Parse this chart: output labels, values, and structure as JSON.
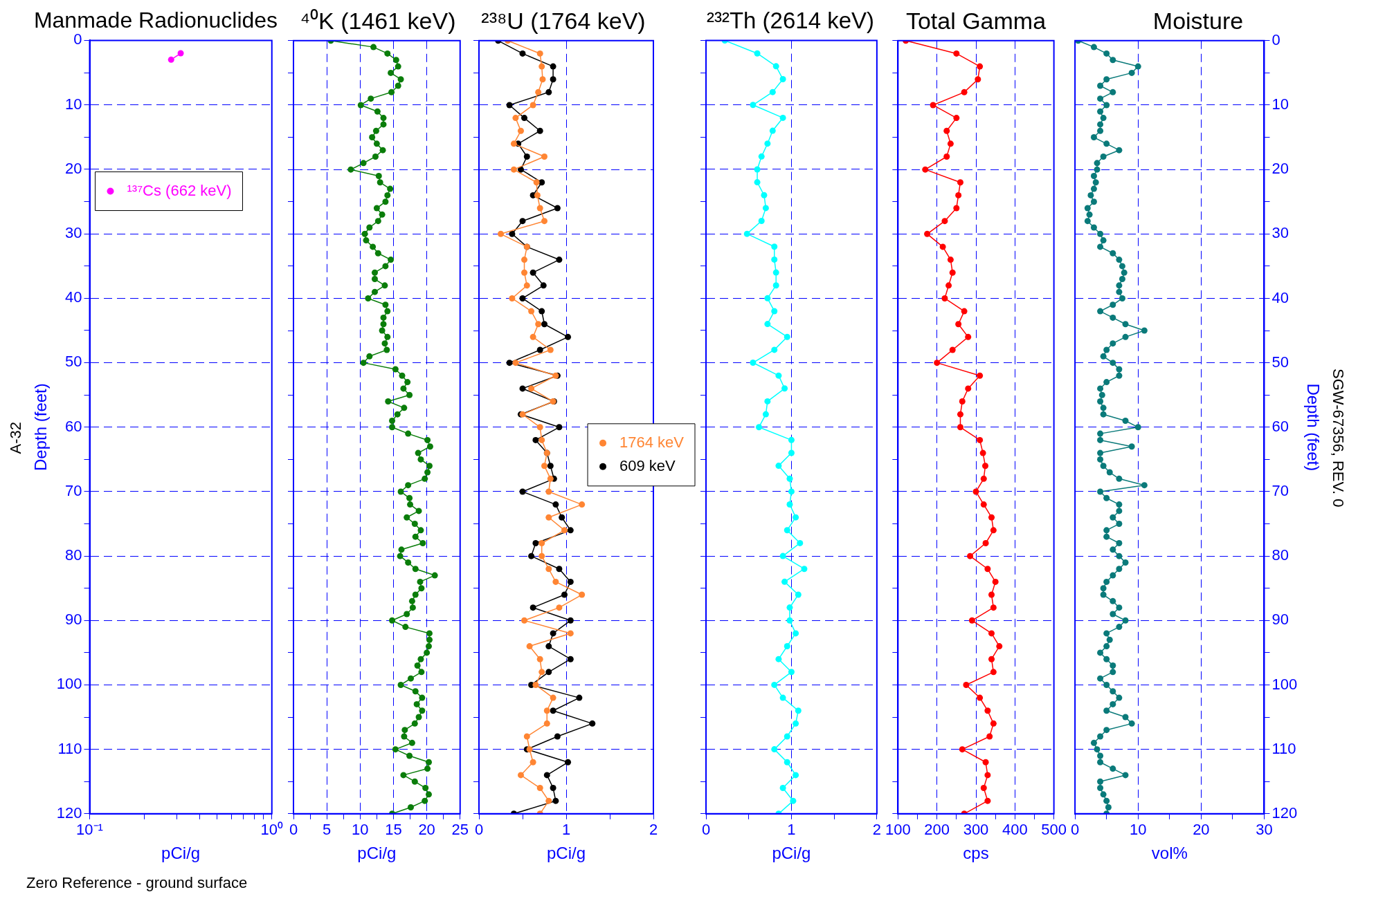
{
  "chart_data": [
    {
      "type": "line",
      "title": "Manmade Radionuclides",
      "xlabel": "pCi/g",
      "ylabel": "Depth (feet)",
      "log": "x",
      "grid": "y",
      "legend": "top left",
      "marker": "circle",
      "xlim": [
        0.1,
        1
      ],
      "xticks": [
        {
          "value": 0.1,
          "label": "10⁻¹"
        },
        {
          "value": 0.2,
          "label": null
        },
        {
          "value": 0.3,
          "label": null
        },
        {
          "value": 0.4,
          "label": null
        },
        {
          "value": 0.5,
          "label": null
        },
        {
          "value": 0.6,
          "label": null
        },
        {
          "value": 0.7,
          "label": null
        },
        {
          "value": 0.8,
          "label": null
        },
        {
          "value": 0.9,
          "label": null
        },
        {
          "value": 1,
          "label": "10⁰"
        }
      ],
      "ylim": [
        120,
        0
      ],
      "yticks": [
        0,
        {
          "value": 5,
          "label": null
        },
        10,
        {
          "value": 15,
          "label": null
        },
        20,
        {
          "value": 25,
          "label": null
        },
        30,
        {
          "value": 35,
          "label": null
        },
        40,
        {
          "value": 45,
          "label": null
        },
        50,
        {
          "value": 55,
          "label": null
        },
        60,
        {
          "value": 65,
          "label": null
        },
        70,
        {
          "value": 75,
          "label": null
        },
        80,
        {
          "value": 85,
          "label": null
        },
        90,
        {
          "value": 95,
          "label": null
        },
        100,
        {
          "value": 105,
          "label": null
        },
        110,
        {
          "value": 115,
          "label": null
        },
        120
      ],
      "series": [
        {
          "name": "¹³⁷Cs (662 keV)",
          "color": "#ff00ff",
          "x": [
            0.316,
            0.28
          ],
          "values": [
            2,
            3
          ]
        }
      ],
      "annotations": [
        "A-32",
        "Zero Reference - ground surface"
      ]
    },
    {
      "type": "line",
      "title": "⁴⁰K (1461 keV)",
      "xlabel": "pCi/g",
      "grid": true,
      "marker": "circle",
      "tick_labels": "x",
      "xlim": [
        0,
        25
      ],
      "xticks": [
        0,
        {
          "value": 2.5,
          "label": null
        },
        5,
        {
          "value": 7.5,
          "label": null
        },
        10,
        {
          "value": 12.5,
          "label": null
        },
        15,
        {
          "value": 17.5,
          "label": null
        },
        20,
        {
          "value": 22.5,
          "label": null
        },
        25
      ],
      "ylim": [
        120,
        0
      ],
      "yticks": [
        0,
        {
          "value": 5,
          "label": null
        },
        10,
        {
          "value": 15,
          "label": null
        },
        20,
        {
          "value": 25,
          "label": null
        },
        30,
        {
          "value": 35,
          "label": null
        },
        40,
        {
          "value": 45,
          "label": null
        },
        50,
        {
          "value": 55,
          "label": null
        },
        60,
        {
          "value": 65,
          "label": null
        },
        70,
        {
          "value": 75,
          "label": null
        },
        80,
        {
          "value": 85,
          "label": null
        },
        90,
        {
          "value": 95,
          "label": null
        },
        100,
        {
          "value": 105,
          "label": null
        },
        110,
        {
          "value": 115,
          "label": null
        },
        120
      ],
      "series": [
        {
          "color": "#0a7d0a",
          "x": [
            5.6,
            12.0,
            14.1,
            15.4,
            15.7,
            14.6,
            16.1,
            15.7,
            14.7,
            11.6,
            10.1,
            12.6,
            13.5,
            13.5,
            12.4,
            11.8,
            12.5,
            13.4,
            12.3,
            10.5,
            8.6,
            12.8,
            13.0,
            14.5,
            14.1,
            13.8,
            12.5,
            13.3,
            12.7,
            11.4,
            10.7,
            10.9,
            11.9,
            12.7,
            14.6,
            13.8,
            12.2,
            12.2,
            13.7,
            12.2,
            11.2,
            13.8,
            14.1,
            13.5,
            13.5,
            13.3,
            14.1,
            13.7,
            14.0,
            11.4,
            10.5,
            15.3,
            16.3,
            17.1,
            16.5,
            17.4,
            14.2,
            16.6,
            15.6,
            14.8,
            14.8,
            17.2,
            20.1,
            20.5,
            18.7,
            19.1,
            20.4,
            20.1,
            19.7,
            17.2,
            16.1,
            17.4,
            17.5,
            18.8,
            17.0,
            18.2,
            19.1,
            18.3,
            19.4,
            16.2,
            16.0,
            17.2,
            18.3,
            21.2,
            19.0,
            19.2,
            18.3,
            17.8,
            17.9,
            17.0,
            14.8,
            16.8,
            20.4,
            20.4,
            20.3,
            20.0,
            19.1,
            18.6,
            19.2,
            17.6,
            16.1,
            18.3,
            19.3,
            18.5,
            19.3,
            18.8,
            18.2,
            16.7,
            16.6,
            17.8,
            15.3,
            17.4,
            20.3,
            20.1,
            16.5,
            18.2,
            19.8,
            20.3,
            19.7,
            17.6,
            14.8
          ],
          "values": [
            0,
            1,
            2,
            3,
            4,
            5,
            6,
            7,
            8,
            9,
            10,
            11,
            12,
            13,
            14,
            15,
            16,
            17,
            18,
            19,
            20,
            21,
            22,
            23,
            24,
            25,
            26,
            27,
            28,
            29,
            30,
            31,
            32,
            33,
            34,
            35,
            36,
            37,
            38,
            39,
            40,
            41,
            42,
            43,
            44,
            45,
            46,
            47,
            48,
            49,
            50,
            51,
            52,
            53,
            54,
            55,
            56,
            57,
            58,
            59,
            60,
            61,
            62,
            63,
            64,
            65,
            66,
            67,
            68,
            69,
            70,
            71,
            72,
            73,
            74,
            75,
            76,
            77,
            78,
            79,
            80,
            81,
            82,
            83,
            84,
            85,
            86,
            87,
            88,
            89,
            90,
            91,
            92,
            93,
            94,
            95,
            96,
            97,
            98,
            99,
            100,
            101,
            102,
            103,
            104,
            105,
            106,
            107,
            108,
            109,
            110,
            111,
            112,
            113,
            114,
            115,
            116,
            117,
            118,
            119,
            120
          ]
        }
      ]
    },
    {
      "type": "line",
      "title": "²³⁸U (1764 keV)",
      "xlabel": "pCi/g",
      "grid": true,
      "legend": "right",
      "marker": "circle",
      "tick_labels": "x",
      "xlim": [
        0,
        2
      ],
      "xticks": [
        0,
        {
          "value": 0.5,
          "label": null
        },
        1,
        {
          "value": 1.5,
          "label": null
        },
        2
      ],
      "ylim": [
        120,
        0
      ],
      "yticks": [
        0,
        {
          "value": 5,
          "label": null
        },
        10,
        {
          "value": 15,
          "label": null
        },
        20,
        {
          "value": 25,
          "label": null
        },
        30,
        {
          "value": 35,
          "label": null
        },
        40,
        {
          "value": 45,
          "label": null
        },
        50,
        {
          "value": 55,
          "label": null
        },
        60,
        {
          "value": 65,
          "label": null
        },
        70,
        {
          "value": 75,
          "label": null
        },
        80,
        {
          "value": 85,
          "label": null
        },
        90,
        {
          "value": 95,
          "label": null
        },
        100,
        {
          "value": 105,
          "label": null
        },
        110,
        {
          "value": 115,
          "label": null
        },
        120
      ],
      "series": [
        {
          "name": "1764 keV",
          "color": "#ff8533",
          "x": [
            0.33,
            0.7,
            0.72,
            0.73,
            0.68,
            0.62,
            0.42,
            0.48,
            0.4,
            0.75,
            0.4,
            0.66,
            0.67,
            0.7,
            0.75,
            0.25,
            0.55,
            0.52,
            0.52,
            0.55,
            0.38,
            0.6,
            0.68,
            0.62,
            0.82,
            0.42,
            0.88,
            0.6,
            0.85,
            0.5,
            0.7,
            0.72,
            0.78,
            0.75,
            0.82,
            0.8,
            1.18,
            0.8,
            0.98,
            0.72,
            0.72,
            0.8,
            0.88,
            1.18,
            0.92,
            0.52,
            1.05,
            0.58,
            0.7,
            0.72,
            0.65,
            0.85,
            0.78,
            0.78,
            0.55,
            0.58,
            0.62,
            0.48,
            0.7,
            0.8,
            0.7
          ],
          "values": [
            0,
            2,
            4,
            6,
            8,
            10,
            12,
            14,
            16,
            18,
            20,
            22,
            24,
            26,
            28,
            30,
            32,
            34,
            36,
            38,
            40,
            42,
            44,
            46,
            48,
            50,
            52,
            54,
            56,
            58,
            60,
            62,
            64,
            66,
            68,
            70,
            72,
            74,
            76,
            78,
            80,
            82,
            84,
            86,
            88,
            90,
            92,
            94,
            96,
            98,
            100,
            102,
            104,
            106,
            108,
            110,
            112,
            114,
            116,
            118,
            120
          ]
        },
        {
          "name": "609 keV",
          "color": "#000000",
          "x": [
            0.22,
            0.5,
            0.85,
            0.85,
            0.8,
            0.35,
            0.52,
            0.7,
            0.45,
            0.55,
            0.48,
            0.72,
            0.62,
            0.9,
            0.5,
            0.38,
            0.55,
            0.92,
            0.62,
            0.74,
            0.5,
            0.72,
            0.75,
            1.02,
            0.7,
            0.35,
            0.9,
            0.5,
            0.86,
            0.48,
            0.92,
            0.65,
            0.78,
            0.82,
            0.86,
            0.5,
            0.88,
            0.95,
            1.05,
            0.65,
            0.6,
            0.92,
            1.05,
            0.98,
            0.62,
            1.05,
            0.85,
            0.8,
            1.05,
            0.8,
            0.6,
            1.15,
            0.85,
            1.3,
            0.9,
            0.55,
            1.02,
            0.78,
            0.85,
            0.88,
            0.4
          ],
          "values": [
            0,
            2,
            4,
            6,
            8,
            10,
            12,
            14,
            16,
            18,
            20,
            22,
            24,
            26,
            28,
            30,
            32,
            34,
            36,
            38,
            40,
            42,
            44,
            46,
            48,
            50,
            52,
            54,
            56,
            58,
            60,
            62,
            64,
            66,
            68,
            70,
            72,
            74,
            76,
            78,
            80,
            82,
            84,
            86,
            88,
            90,
            92,
            94,
            96,
            98,
            100,
            102,
            104,
            106,
            108,
            110,
            112,
            114,
            116,
            118,
            120
          ]
        }
      ]
    },
    {
      "type": "line",
      "title": "²³²Th (2614 keV)",
      "xlabel": "pCi/g",
      "grid": true,
      "marker": "circle",
      "tick_labels": "x",
      "xlim": [
        0,
        2
      ],
      "xticks": [
        0,
        {
          "value": 0.5,
          "label": null
        },
        1,
        {
          "value": 1.5,
          "label": null
        },
        2
      ],
      "ylim": [
        120,
        0
      ],
      "yticks": [
        0,
        {
          "value": 5,
          "label": null
        },
        10,
        {
          "value": 15,
          "label": null
        },
        20,
        {
          "value": 25,
          "label": null
        },
        30,
        {
          "value": 35,
          "label": null
        },
        40,
        {
          "value": 45,
          "label": null
        },
        50,
        {
          "value": 55,
          "label": null
        },
        60,
        {
          "value": 65,
          "label": null
        },
        70,
        {
          "value": 75,
          "label": null
        },
        80,
        {
          "value": 85,
          "label": null
        },
        90,
        {
          "value": 95,
          "label": null
        },
        100,
        {
          "value": 105,
          "label": null
        },
        110,
        {
          "value": 115,
          "label": null
        },
        120
      ],
      "series": [
        {
          "color": "#00ffff",
          "x": [
            0.22,
            0.6,
            0.82,
            0.9,
            0.78,
            0.55,
            0.9,
            0.78,
            0.72,
            0.65,
            0.6,
            0.6,
            0.68,
            0.7,
            0.65,
            0.48,
            0.8,
            0.8,
            0.82,
            0.82,
            0.72,
            0.8,
            0.72,
            0.95,
            0.8,
            0.55,
            0.85,
            0.92,
            0.72,
            0.7,
            0.62,
            1.0,
            1.0,
            0.85,
            0.98,
            1.0,
            0.98,
            1.05,
            0.95,
            1.1,
            0.9,
            1.15,
            0.92,
            1.08,
            0.98,
            0.98,
            1.05,
            0.95,
            0.85,
            1.0,
            0.8,
            0.9,
            1.08,
            1.05,
            0.95,
            0.8,
            0.95,
            1.05,
            0.9,
            1.02,
            0.85
          ],
          "values": [
            0,
            2,
            4,
            6,
            8,
            10,
            12,
            14,
            16,
            18,
            20,
            22,
            24,
            26,
            28,
            30,
            32,
            34,
            36,
            38,
            40,
            42,
            44,
            46,
            48,
            50,
            52,
            54,
            56,
            58,
            60,
            62,
            64,
            66,
            68,
            70,
            72,
            74,
            76,
            78,
            80,
            82,
            84,
            86,
            88,
            90,
            92,
            94,
            96,
            98,
            100,
            102,
            104,
            106,
            108,
            110,
            112,
            114,
            116,
            118,
            120
          ]
        }
      ]
    },
    {
      "type": "line",
      "title": "Total Gamma",
      "xlabel": "cps",
      "grid": true,
      "marker": "circle",
      "tick_labels": "x",
      "xlim": [
        100,
        500
      ],
      "xticks": [
        100,
        {
          "value": 150,
          "label": null
        },
        200,
        {
          "value": 250,
          "label": null
        },
        300,
        {
          "value": 350,
          "label": null
        },
        400,
        {
          "value": 450,
          "label": null
        },
        500
      ],
      "ylim": [
        120,
        0
      ],
      "yticks": [
        0,
        {
          "value": 5,
          "label": null
        },
        10,
        {
          "value": 15,
          "label": null
        },
        20,
        {
          "value": 25,
          "label": null
        },
        30,
        {
          "value": 35,
          "label": null
        },
        40,
        {
          "value": 45,
          "label": null
        },
        50,
        {
          "value": 55,
          "label": null
        },
        60,
        {
          "value": 65,
          "label": null
        },
        70,
        {
          "value": 75,
          "label": null
        },
        80,
        {
          "value": 85,
          "label": null
        },
        90,
        {
          "value": 95,
          "label": null
        },
        100,
        {
          "value": 105,
          "label": null
        },
        110,
        {
          "value": 115,
          "label": null
        },
        120
      ],
      "series": [
        {
          "color": "#ff0000",
          "x": [
            120,
            250,
            310,
            305,
            270,
            190,
            250,
            225,
            235,
            225,
            170,
            260,
            255,
            250,
            220,
            175,
            215,
            235,
            240,
            230,
            220,
            270,
            255,
            280,
            240,
            200,
            310,
            280,
            265,
            260,
            260,
            310,
            318,
            324,
            320,
            300,
            320,
            340,
            345,
            325,
            285,
            330,
            350,
            340,
            345,
            290,
            340,
            360,
            340,
            345,
            275,
            310,
            330,
            345,
            335,
            265,
            325,
            330,
            320,
            330,
            270
          ],
          "values": [
            0,
            2,
            4,
            6,
            8,
            10,
            12,
            14,
            16,
            18,
            20,
            22,
            24,
            26,
            28,
            30,
            32,
            34,
            36,
            38,
            40,
            42,
            44,
            46,
            48,
            50,
            52,
            54,
            56,
            58,
            60,
            62,
            64,
            66,
            68,
            70,
            72,
            74,
            76,
            78,
            80,
            82,
            84,
            86,
            88,
            90,
            92,
            94,
            96,
            98,
            100,
            102,
            104,
            106,
            108,
            110,
            112,
            114,
            116,
            118,
            120
          ]
        }
      ]
    },
    {
      "type": "line",
      "title": "Moisture",
      "xlabel": "vol%",
      "y2label": "Depth (feet)",
      "grid": true,
      "marker": "circle",
      "xlim": [
        0,
        30
      ],
      "xticks": [
        0,
        {
          "value": 5,
          "label": null
        },
        10,
        {
          "value": 15,
          "label": null
        },
        20,
        {
          "value": 25,
          "label": null
        },
        30
      ],
      "y2lim": [
        120,
        0
      ],
      "y2ticks": [
        0,
        {
          "value": 5,
          "label": null
        },
        10,
        {
          "value": 15,
          "label": null
        },
        20,
        {
          "value": 25,
          "label": null
        },
        30,
        {
          "value": 35,
          "label": null
        },
        40,
        {
          "value": 45,
          "label": null
        },
        50,
        {
          "value": 55,
          "label": null
        },
        60,
        {
          "value": 65,
          "label": null
        },
        70,
        {
          "value": 75,
          "label": null
        },
        80,
        {
          "value": 85,
          "label": null
        },
        90,
        {
          "value": 95,
          "label": null
        },
        100,
        {
          "value": 105,
          "label": null
        },
        110,
        {
          "value": 115,
          "label": null
        },
        120
      ],
      "series": [
        {
          "color": "#0a7a7a",
          "axis": "y2",
          "x": [
            0.5,
            3,
            5,
            6,
            10,
            9,
            5,
            4,
            6,
            4,
            5,
            4,
            4.5,
            4,
            4,
            3,
            5,
            7,
            4.5,
            3.5,
            3.5,
            3,
            3.3,
            3,
            2.5,
            3,
            2,
            2.3,
            2,
            3,
            4,
            4.5,
            4,
            6,
            7,
            7.5,
            7.8,
            7.5,
            7,
            7,
            7.5,
            6,
            4,
            6,
            8,
            11,
            8,
            6,
            5,
            4.5,
            6,
            7,
            7,
            5,
            4,
            4.3,
            4,
            4.5,
            4.5,
            8,
            10,
            4,
            4,
            9,
            4,
            4,
            4.5,
            5.5,
            7,
            11,
            4,
            5,
            7,
            7,
            6,
            7,
            5,
            5,
            7,
            6,
            7,
            8,
            7,
            6,
            5,
            4.5,
            4.5,
            6,
            7,
            6,
            8,
            7,
            5,
            5.5,
            5,
            4,
            5,
            6,
            6,
            4,
            5,
            6,
            7,
            6,
            5,
            8,
            9,
            5,
            4,
            3,
            3.5,
            4,
            4,
            6,
            8,
            4,
            4,
            4.5,
            5,
            5.3,
            5
          ],
          "values": [
            0,
            1,
            2,
            3,
            4,
            5,
            6,
            7,
            8,
            9,
            10,
            11,
            12,
            13,
            14,
            15,
            16,
            17,
            18,
            19,
            20,
            21,
            22,
            23,
            24,
            25,
            26,
            27,
            28,
            29,
            30,
            31,
            32,
            33,
            34,
            35,
            36,
            37,
            38,
            39,
            40,
            41,
            42,
            43,
            44,
            45,
            46,
            47,
            48,
            49,
            50,
            51,
            52,
            53,
            54,
            55,
            56,
            57,
            58,
            59,
            60,
            61,
            62,
            63,
            64,
            65,
            66,
            67,
            68,
            69,
            70,
            71,
            72,
            73,
            74,
            75,
            76,
            77,
            78,
            79,
            80,
            81,
            82,
            83,
            84,
            85,
            86,
            87,
            88,
            89,
            90,
            91,
            92,
            93,
            94,
            95,
            96,
            97,
            98,
            99,
            100,
            101,
            102,
            103,
            104,
            105,
            106,
            107,
            108,
            109,
            110,
            111,
            112,
            113,
            114,
            115,
            116,
            117,
            118,
            119,
            120
          ]
        }
      ],
      "annotations": [
        "SGW-67356, REV. 0"
      ]
    }
  ]
}
